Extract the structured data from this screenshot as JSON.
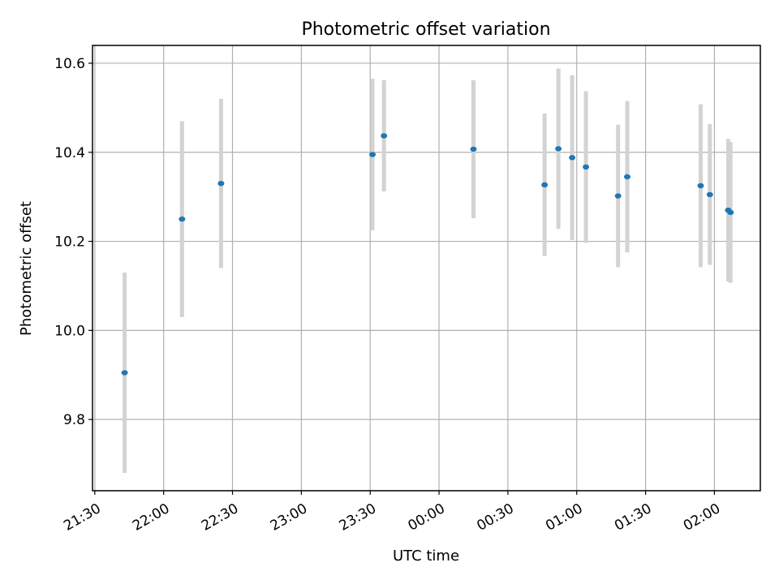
{
  "chart_data": {
    "type": "scatter",
    "title": "Photometric offset variation",
    "xlabel": "UTC time",
    "ylabel": "Photometric offset",
    "x_ticks": [
      "21:30",
      "22:00",
      "22:30",
      "23:00",
      "23:30",
      "00:00",
      "00:30",
      "01:00",
      "01:30",
      "02:00"
    ],
    "y_ticks": [
      "9.8",
      "10.0",
      "10.2",
      "10.4",
      "10.6"
    ],
    "xlim": [
      "21:29",
      "02:20"
    ],
    "ylim": [
      9.64,
      10.64
    ],
    "grid": true,
    "marker_color": "#1f77b4",
    "errorbar_color": "#d3d3d3",
    "points": [
      {
        "x": "21:43",
        "y": 9.905,
        "yerr": 0.225
      },
      {
        "x": "22:08",
        "y": 10.25,
        "yerr": 0.22
      },
      {
        "x": "22:25",
        "y": 10.33,
        "yerr": 0.19
      },
      {
        "x": "23:31",
        "y": 10.395,
        "yerr": 0.17
      },
      {
        "x": "23:36",
        "y": 10.437,
        "yerr": 0.125
      },
      {
        "x": "00:15",
        "y": 10.407,
        "yerr": 0.155
      },
      {
        "x": "00:46",
        "y": 10.327,
        "yerr": 0.16
      },
      {
        "x": "00:52",
        "y": 10.408,
        "yerr": 0.18
      },
      {
        "x": "00:58",
        "y": 10.388,
        "yerr": 0.185
      },
      {
        "x": "01:04",
        "y": 10.367,
        "yerr": 0.17
      },
      {
        "x": "01:18",
        "y": 10.302,
        "yerr": 0.16
      },
      {
        "x": "01:22",
        "y": 10.345,
        "yerr": 0.17
      },
      {
        "x": "01:54",
        "y": 10.325,
        "yerr": 0.183
      },
      {
        "x": "01:58",
        "y": 10.305,
        "yerr": 0.158
      },
      {
        "x": "02:06",
        "y": 10.27,
        "yerr": 0.16
      },
      {
        "x": "02:07",
        "y": 10.265,
        "yerr": 0.158
      }
    ]
  }
}
